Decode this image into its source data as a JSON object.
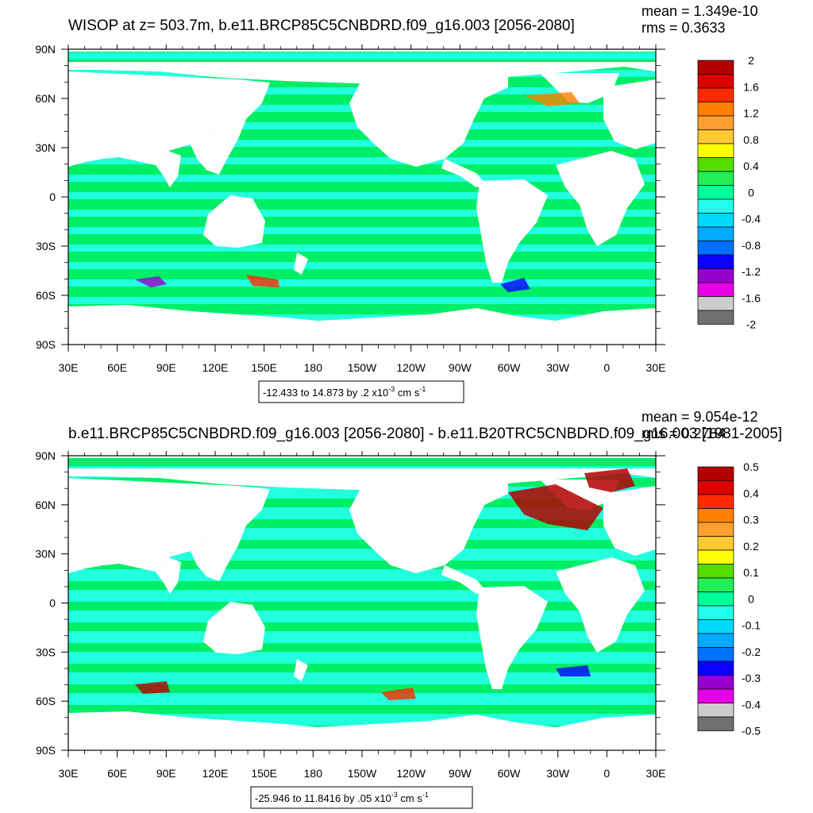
{
  "panels": [
    {
      "title": "WISOP at z= 503.7m, b.e11.BRCP85C5CNBDRD.f09_g16.003 [2056-2080]",
      "stats": {
        "mean": "mean = 1.349e-10",
        "rms": "rms = 0.3633"
      },
      "range": {
        "text": "-12.433 to 14.873 by .2 x10",
        "exp": "-3",
        "unit": " cm s",
        "unit_exp": "-1"
      },
      "colorbar_labels": [
        "2",
        "1.6",
        "1.2",
        "0.8",
        "0.4",
        "0",
        "-0.4",
        "-0.8",
        "-1.2",
        "-1.6",
        "-2"
      ]
    },
    {
      "title": "b.e11.BRCP85C5CNBDRD.f09_g16.003 [2056-2080] - b.e11.B20TRC5CNBDRD.f09_g16.003 [1981-2005]",
      "stats": {
        "mean": "mean = 9.054e-12",
        "rms": "rms = 0.2784"
      },
      "range": {
        "text": "-25.946 to 11.8416 by .05 x10",
        "exp": "-3",
        "unit": " cm s",
        "unit_exp": "-1"
      },
      "colorbar_labels": [
        "0.5",
        "0.4",
        "0.3",
        "0.2",
        "0.1",
        "0",
        "-0.1",
        "-0.2",
        "-0.3",
        "-0.4",
        "-0.5"
      ]
    }
  ],
  "axes": {
    "x_ticks": [
      "30E",
      "60E",
      "90E",
      "120E",
      "150E",
      "180",
      "150W",
      "120W",
      "90W",
      "60W",
      "30W",
      "0",
      "30E"
    ],
    "y_ticks": [
      "90N",
      "60N",
      "30N",
      "0",
      "30S",
      "60S",
      "90S"
    ]
  },
  "colors": {
    "colorbar": [
      "#b30000",
      "#dd0000",
      "#ff2a00",
      "#ff7f00",
      "#ff9f30",
      "#ffc832",
      "#ffff00",
      "#55dd00",
      "#22ee55",
      "#00ff96",
      "#22ffee",
      "#00d8ff",
      "#00aaff",
      "#0070ff",
      "#0a00ff",
      "#9600cc",
      "#e600e6",
      "#cccccc",
      "#707070"
    ],
    "ocean_a": "#00ee66",
    "ocean_b": "#22ffdd",
    "land": "#ffffff"
  },
  "chart_data": [
    {
      "type": "heatmap",
      "title": "WISOP at z= 503.7m, b.e11.BRCP85C5CNBDRD.f09_g16.003 [2056-2080]",
      "x_range": [
        "30E",
        "30E"
      ],
      "y_range": [
        "90S",
        "90N"
      ],
      "mean": 1.349e-10,
      "rms": 0.3633,
      "data_min": -12.433,
      "data_max": 14.873,
      "contour_interval": 0.2,
      "units": "x10^-3 cm s^-1",
      "color_levels": [
        2,
        1.6,
        1.2,
        0.8,
        0.4,
        0,
        -0.4,
        -0.8,
        -1.2,
        -1.6,
        -2
      ]
    },
    {
      "type": "heatmap",
      "title": "b.e11.BRCP85C5CNBDRD.f09_g16.003 [2056-2080] - b.e11.B20TRC5CNBDRD.f09_g16.003 [1981-2005]",
      "x_range": [
        "30E",
        "30E"
      ],
      "y_range": [
        "90S",
        "90N"
      ],
      "mean": 9.054e-12,
      "rms": 0.2784,
      "data_min": -25.946,
      "data_max": 11.8416,
      "contour_interval": 0.05,
      "units": "x10^-3 cm s^-1",
      "color_levels": [
        0.5,
        0.4,
        0.3,
        0.2,
        0.1,
        0,
        -0.1,
        -0.2,
        -0.3,
        -0.4,
        -0.5
      ]
    }
  ]
}
